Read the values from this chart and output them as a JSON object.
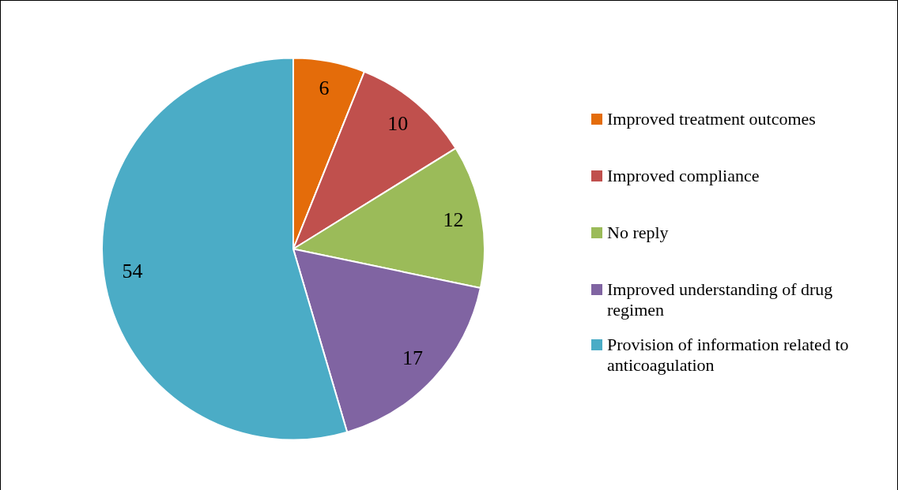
{
  "chart_data": {
    "type": "pie",
    "categories": [
      "Improved treatment outcomes",
      "Improved compliance",
      "No reply",
      "Improved understanding of drug regimen",
      "Provision of information related to anticoagulation"
    ],
    "values": [
      6,
      10,
      12,
      17,
      54
    ],
    "colors": [
      "#e46c0a",
      "#c0504d",
      "#9bbb59",
      "#8064a2",
      "#4bacc6"
    ],
    "data_labels": true,
    "legend": "right"
  }
}
